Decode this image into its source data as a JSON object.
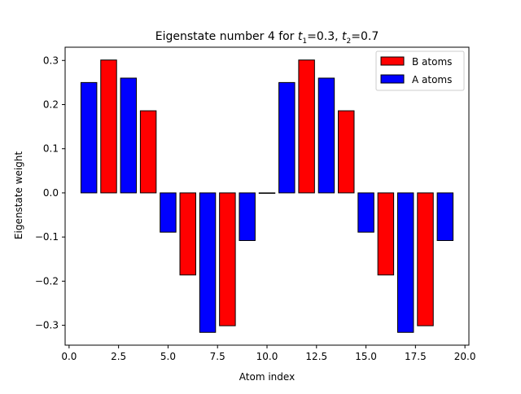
{
  "chart_data": {
    "type": "bar",
    "title": "Eigenstate number 4 for t1=0.3, t2=0.7",
    "title_parts": {
      "prefix": "Eigenstate number 4 for ",
      "t1_symbol": "t",
      "t1_sub": "1",
      "t1_value": "=0.3, ",
      "t2_symbol": "t",
      "t2_sub": "2",
      "t2_value": "=0.7"
    },
    "xlabel": "Atom index",
    "ylabel": "Eigenstate weight",
    "xlim": [
      -0.2,
      20.2
    ],
    "ylim": [
      -0.345,
      0.33
    ],
    "xticks": [
      0.0,
      2.5,
      5.0,
      7.5,
      10.0,
      12.5,
      15.0,
      17.5,
      20.0
    ],
    "xtick_labels": [
      "0.0",
      "2.5",
      "5.0",
      "7.5",
      "10.0",
      "12.5",
      "15.0",
      "17.5",
      "20.0"
    ],
    "yticks": [
      -0.3,
      -0.2,
      -0.1,
      0.0,
      0.1,
      0.2,
      0.3
    ],
    "ytick_labels": [
      "−0.3",
      "−0.2",
      "−0.1",
      "0.0",
      "0.1",
      "0.2",
      "0.3"
    ],
    "bar_width": 0.8,
    "grid": false,
    "legend_position": "upper right",
    "series": [
      {
        "name": "B atoms",
        "color": "#ff0000",
        "x": [
          2,
          4,
          6,
          8,
          10,
          12,
          14,
          16,
          18
        ],
        "values": [
          0.301,
          0.186,
          -0.186,
          -0.301,
          0.0,
          0.301,
          0.186,
          -0.186,
          -0.301
        ]
      },
      {
        "name": "A atoms",
        "color": "#0000ff",
        "x": [
          1,
          3,
          5,
          7,
          9,
          11,
          13,
          15,
          17,
          19
        ],
        "values": [
          0.25,
          0.26,
          -0.089,
          -0.316,
          -0.108,
          0.25,
          0.26,
          -0.089,
          -0.316,
          -0.108
        ]
      }
    ]
  }
}
